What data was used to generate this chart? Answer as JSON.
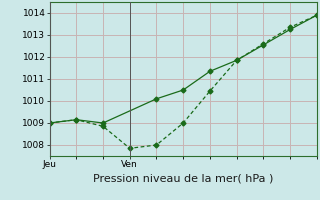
{
  "line1_x": [
    0,
    1,
    2,
    4,
    5,
    6,
    7,
    8,
    9,
    10
  ],
  "line1_y": [
    1009.0,
    1009.15,
    1009.0,
    1010.1,
    1010.5,
    1011.35,
    1011.85,
    1012.55,
    1013.25,
    1013.9
  ],
  "line2_x": [
    0,
    1,
    2,
    3,
    4,
    5,
    6,
    7,
    8,
    9,
    10
  ],
  "line2_y": [
    1009.0,
    1009.15,
    1008.85,
    1007.85,
    1008.0,
    1009.0,
    1010.45,
    1011.85,
    1012.6,
    1013.35,
    1013.9
  ],
  "line_color": "#1a6b1a",
  "marker": "D",
  "marker_size": 2.5,
  "xlabel": "Pression niveau de la mer( hPa )",
  "ylim": [
    1007.5,
    1014.5
  ],
  "xlim": [
    0,
    10
  ],
  "yticks": [
    1008,
    1009,
    1010,
    1011,
    1012,
    1013,
    1014
  ],
  "xtick_positions": [
    0,
    3
  ],
  "xtick_labels": [
    "Jeu",
    "Ven"
  ],
  "vlines": [
    0,
    3
  ],
  "bg_color": "#cce8e8",
  "grid_color": "#c8b4b4",
  "xlabel_fontsize": 8,
  "tick_fontsize": 6.5
}
